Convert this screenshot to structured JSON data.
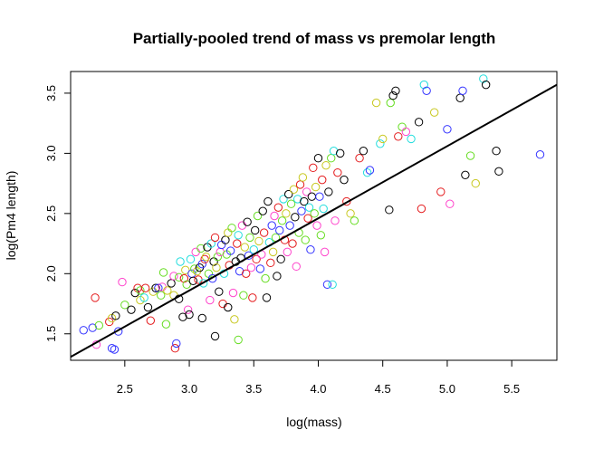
{
  "chart_data": {
    "type": "scatter",
    "title": "Partially-pooled trend of mass vs premolar length",
    "xlabel": "log(mass)",
    "ylabel": "log(Pm4 length)",
    "xlim": [
      2.08,
      5.85
    ],
    "ylim": [
      1.28,
      3.68
    ],
    "x_ticks": [
      2.5,
      3.0,
      3.5,
      4.0,
      4.5,
      5.0,
      5.5
    ],
    "x_tick_labels": [
      "2.5",
      "3.0",
      "3.5",
      "4.0",
      "4.5",
      "5.0",
      "5.5"
    ],
    "y_ticks": [
      1.5,
      2.0,
      2.5,
      3.0,
      3.5
    ],
    "y_tick_labels": [
      "1.5",
      "2.0",
      "2.5",
      "3.0",
      "3.5"
    ],
    "grid": false,
    "legend": "none",
    "marker": "open-circle",
    "trend_line": {
      "intercept": 0.06,
      "slope": 0.6,
      "color": "#000000"
    },
    "palette": [
      "#000000",
      "#e41a1c",
      "#66dd22",
      "#3333ff",
      "#22dddd",
      "#ff44cc",
      "#c8c820",
      "#999999"
    ],
    "points": [
      [
        2.18,
        1.53,
        3
      ],
      [
        2.27,
        1.8,
        1
      ],
      [
        2.25,
        1.55,
        3
      ],
      [
        2.28,
        1.41,
        5
      ],
      [
        2.3,
        1.57,
        2
      ],
      [
        2.38,
        1.6,
        1
      ],
      [
        2.4,
        1.63,
        6
      ],
      [
        2.4,
        1.38,
        3
      ],
      [
        2.42,
        1.37,
        3
      ],
      [
        2.43,
        1.65,
        0
      ],
      [
        2.45,
        1.52,
        3
      ],
      [
        2.48,
        1.93,
        5
      ],
      [
        2.5,
        1.74,
        2
      ],
      [
        2.55,
        1.7,
        0
      ],
      [
        2.58,
        1.84,
        0
      ],
      [
        2.6,
        1.88,
        1
      ],
      [
        2.62,
        1.78,
        6
      ],
      [
        2.62,
        1.86,
        2
      ],
      [
        2.65,
        1.8,
        4
      ],
      [
        2.66,
        1.88,
        1
      ],
      [
        2.68,
        1.72,
        0
      ],
      [
        2.7,
        1.61,
        1
      ],
      [
        2.72,
        1.85,
        6
      ],
      [
        2.74,
        1.88,
        0
      ],
      [
        2.76,
        1.88,
        3
      ],
      [
        2.78,
        1.82,
        2
      ],
      [
        2.79,
        1.89,
        5
      ],
      [
        2.8,
        2.01,
        2
      ],
      [
        2.82,
        1.58,
        2
      ],
      [
        2.83,
        1.86,
        6
      ],
      [
        2.86,
        1.92,
        0
      ],
      [
        2.88,
        1.82,
        6
      ],
      [
        2.88,
        1.98,
        5
      ],
      [
        2.89,
        1.38,
        1
      ],
      [
        2.9,
        1.42,
        3
      ],
      [
        2.92,
        1.79,
        0
      ],
      [
        2.92,
        1.97,
        2
      ],
      [
        2.93,
        2.1,
        4
      ],
      [
        2.95,
        1.64,
        0
      ],
      [
        2.96,
        1.96,
        1
      ],
      [
        2.97,
        2.03,
        6
      ],
      [
        2.98,
        1.91,
        2
      ],
      [
        2.99,
        1.7,
        5
      ],
      [
        3.0,
        1.66,
        0
      ],
      [
        3.01,
        2.12,
        4
      ],
      [
        3.02,
        2.0,
        3
      ],
      [
        3.03,
        1.94,
        0
      ],
      [
        3.04,
        2.04,
        2
      ],
      [
        3.05,
        2.18,
        5
      ],
      [
        3.06,
        2.02,
        6
      ],
      [
        3.07,
        1.95,
        1
      ],
      [
        3.08,
        2.05,
        0
      ],
      [
        3.09,
        2.21,
        2
      ],
      [
        3.1,
        1.63,
        0
      ],
      [
        3.1,
        2.08,
        3
      ],
      [
        3.11,
        1.92,
        4
      ],
      [
        3.12,
        2.12,
        1
      ],
      [
        3.13,
        2.14,
        6
      ],
      [
        3.14,
        2.22,
        0
      ],
      [
        3.15,
        2.0,
        2
      ],
      [
        3.16,
        1.78,
        5
      ],
      [
        3.17,
        2.25,
        4
      ],
      [
        3.18,
        1.96,
        3
      ],
      [
        3.19,
        2.1,
        0
      ],
      [
        3.2,
        1.48,
        0
      ],
      [
        3.2,
        2.3,
        1
      ],
      [
        3.21,
        2.05,
        6
      ],
      [
        3.22,
        2.14,
        2
      ],
      [
        3.23,
        1.85,
        0
      ],
      [
        3.24,
        2.18,
        5
      ],
      [
        3.25,
        2.24,
        3
      ],
      [
        3.26,
        1.75,
        1
      ],
      [
        3.27,
        2.0,
        4
      ],
      [
        3.28,
        2.28,
        0
      ],
      [
        3.29,
        2.16,
        2
      ],
      [
        3.3,
        1.72,
        0
      ],
      [
        3.3,
        2.34,
        6
      ],
      [
        3.31,
        2.07,
        1
      ],
      [
        3.32,
        2.19,
        3
      ],
      [
        3.33,
        2.38,
        2
      ],
      [
        3.34,
        1.84,
        5
      ],
      [
        3.35,
        1.62,
        6
      ],
      [
        3.36,
        2.1,
        0
      ],
      [
        3.37,
        2.25,
        1
      ],
      [
        3.38,
        1.45,
        2
      ],
      [
        3.38,
        2.32,
        4
      ],
      [
        3.39,
        2.02,
        3
      ],
      [
        3.4,
        2.13,
        0
      ],
      [
        3.41,
        2.4,
        5
      ],
      [
        3.42,
        1.82,
        2
      ],
      [
        3.43,
        2.22,
        6
      ],
      [
        3.44,
        2.0,
        1
      ],
      [
        3.45,
        2.43,
        0
      ],
      [
        3.46,
        2.15,
        3
      ],
      [
        3.47,
        2.3,
        2
      ],
      [
        3.48,
        2.05,
        5
      ],
      [
        3.49,
        1.8,
        1
      ],
      [
        3.5,
        2.2,
        4
      ],
      [
        3.51,
        2.36,
        0
      ],
      [
        3.52,
        2.12,
        1
      ],
      [
        3.53,
        2.48,
        2
      ],
      [
        3.54,
        2.27,
        6
      ],
      [
        3.55,
        2.04,
        3
      ],
      [
        3.56,
        2.16,
        5
      ],
      [
        3.57,
        2.52,
        0
      ],
      [
        3.58,
        2.34,
        1
      ],
      [
        3.59,
        1.96,
        2
      ],
      [
        3.6,
        1.8,
        0
      ],
      [
        3.61,
        2.6,
        0
      ],
      [
        3.62,
        2.26,
        4
      ],
      [
        3.63,
        2.09,
        1
      ],
      [
        3.64,
        2.4,
        3
      ],
      [
        3.65,
        2.18,
        6
      ],
      [
        3.66,
        2.48,
        5
      ],
      [
        3.67,
        2.3,
        2
      ],
      [
        3.68,
        1.98,
        0
      ],
      [
        3.69,
        2.55,
        1
      ],
      [
        3.7,
        2.36,
        3
      ],
      [
        3.71,
        2.12,
        0
      ],
      [
        3.72,
        2.44,
        2
      ],
      [
        3.73,
        2.62,
        4
      ],
      [
        3.74,
        2.28,
        1
      ],
      [
        3.75,
        2.5,
        6
      ],
      [
        3.76,
        2.18,
        5
      ],
      [
        3.77,
        2.66,
        0
      ],
      [
        3.78,
        2.4,
        3
      ],
      [
        3.79,
        2.58,
        2
      ],
      [
        3.8,
        2.25,
        1
      ],
      [
        3.81,
        2.7,
        6
      ],
      [
        3.82,
        2.47,
        0
      ],
      [
        3.83,
        2.06,
        5
      ],
      [
        3.84,
        2.62,
        4
      ],
      [
        3.85,
        2.34,
        2
      ],
      [
        3.86,
        2.74,
        1
      ],
      [
        3.87,
        2.52,
        3
      ],
      [
        3.88,
        2.8,
        6
      ],
      [
        3.89,
        2.6,
        0
      ],
      [
        3.9,
        2.28,
        2
      ],
      [
        3.91,
        2.68,
        5
      ],
      [
        3.92,
        2.46,
        1
      ],
      [
        3.93,
        2.55,
        4
      ],
      [
        3.94,
        2.2,
        3
      ],
      [
        3.95,
        2.64,
        0
      ],
      [
        3.96,
        2.88,
        1
      ],
      [
        3.97,
        2.5,
        2
      ],
      [
        3.98,
        2.72,
        6
      ],
      [
        3.99,
        2.4,
        5
      ],
      [
        4.0,
        2.96,
        0
      ],
      [
        4.01,
        2.64,
        3
      ],
      [
        4.02,
        2.32,
        2
      ],
      [
        4.03,
        2.78,
        1
      ],
      [
        4.04,
        2.54,
        4
      ],
      [
        4.05,
        2.18,
        5
      ],
      [
        4.06,
        2.9,
        6
      ],
      [
        4.07,
        1.91,
        3
      ],
      [
        4.08,
        2.68,
        0
      ],
      [
        4.1,
        2.96,
        2
      ],
      [
        4.11,
        1.91,
        4
      ],
      [
        4.12,
        3.02,
        4
      ],
      [
        4.13,
        2.44,
        5
      ],
      [
        4.15,
        2.84,
        1
      ],
      [
        4.17,
        3.0,
        0
      ],
      [
        4.2,
        2.78,
        0
      ],
      [
        4.22,
        2.6,
        1
      ],
      [
        4.25,
        2.5,
        6
      ],
      [
        4.28,
        2.44,
        2
      ],
      [
        4.32,
        2.96,
        1
      ],
      [
        4.35,
        3.02,
        0
      ],
      [
        4.38,
        2.84,
        4
      ],
      [
        4.4,
        2.86,
        3
      ],
      [
        4.45,
        3.42,
        6
      ],
      [
        4.48,
        3.08,
        4
      ],
      [
        4.5,
        3.12,
        6
      ],
      [
        4.55,
        2.53,
        0
      ],
      [
        4.56,
        3.42,
        2
      ],
      [
        4.58,
        3.48,
        0
      ],
      [
        4.6,
        3.52,
        0
      ],
      [
        4.62,
        3.14,
        1
      ],
      [
        4.65,
        3.22,
        2
      ],
      [
        4.68,
        3.18,
        5
      ],
      [
        4.72,
        3.12,
        4
      ],
      [
        4.78,
        3.26,
        0
      ],
      [
        4.8,
        2.54,
        1
      ],
      [
        4.82,
        3.57,
        4
      ],
      [
        4.84,
        3.52,
        3
      ],
      [
        4.9,
        3.34,
        6
      ],
      [
        4.95,
        2.68,
        1
      ],
      [
        5.0,
        3.2,
        3
      ],
      [
        5.02,
        2.58,
        5
      ],
      [
        5.1,
        3.46,
        0
      ],
      [
        5.14,
        2.82,
        0
      ],
      [
        5.18,
        2.98,
        2
      ],
      [
        5.22,
        2.75,
        6
      ],
      [
        5.28,
        3.62,
        4
      ],
      [
        5.3,
        3.57,
        0
      ],
      [
        5.38,
        3.02,
        0
      ],
      [
        5.4,
        2.85,
        0
      ],
      [
        5.72,
        2.99,
        3
      ],
      [
        5.12,
        3.52,
        3
      ]
    ]
  }
}
